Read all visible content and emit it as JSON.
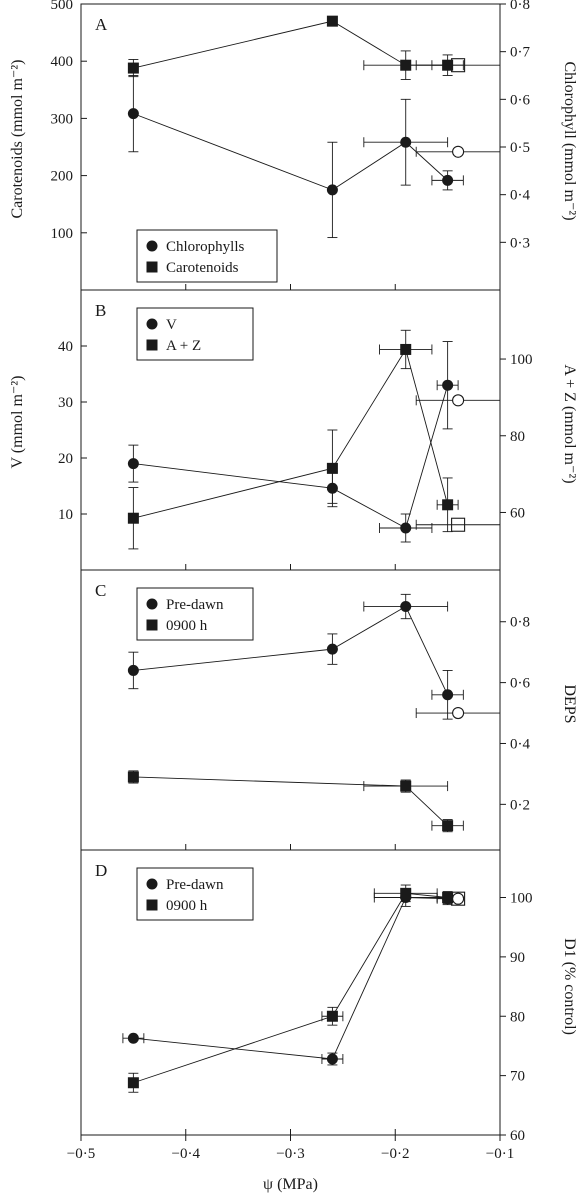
{
  "chart_data": [
    {
      "type": "scatter",
      "panel": "A",
      "xlim": [
        -0.5,
        -0.1
      ],
      "left_axis": {
        "label": "Carotenoids (mmol m⁻²)",
        "lim": [
          0,
          500
        ],
        "ticks": [
          100,
          200,
          300,
          400,
          500
        ],
        "tick_labels": [
          "100",
          "200",
          "300",
          "400",
          "500"
        ]
      },
      "right_axis": {
        "label": "Chlorophyll (mmol m⁻²)",
        "lim": [
          0.2,
          0.8
        ],
        "ticks": [
          0.3,
          0.4,
          0.5,
          0.6,
          0.7,
          0.8
        ],
        "tick_labels": [
          "0·3",
          "0·4",
          "0·5",
          "0·6",
          "0·7",
          "0·8"
        ]
      },
      "legend": {
        "placement": "bottom-left",
        "entries": [
          {
            "label": "Chlorophylls",
            "marker": "circle"
          },
          {
            "label": "Carotenoids",
            "marker": "square"
          }
        ]
      },
      "series": [
        {
          "name": "Chlorophylls",
          "marker": "circle",
          "axis": "right",
          "points": [
            {
              "x": -0.45,
              "y": 0.57,
              "yerr": 0.08
            },
            {
              "x": -0.26,
              "y": 0.41,
              "yerr": 0.1
            },
            {
              "x": -0.19,
              "y": 0.51,
              "yerr": 0.09,
              "xerr": 0.04
            },
            {
              "x": -0.15,
              "y": 0.43,
              "yerr": 0.02,
              "xerr": 0.015
            }
          ]
        },
        {
          "name": "Carotenoids",
          "marker": "square",
          "axis": "left",
          "points": [
            {
              "x": -0.45,
              "y": 388,
              "yerr": 15
            },
            {
              "x": -0.26,
              "y": 470,
              "yerr": 8
            },
            {
              "x": -0.19,
              "y": 393,
              "yerr": 25,
              "xerr": 0.04
            },
            {
              "x": -0.15,
              "y": 393,
              "yerr": 18,
              "xerr": 0.015
            }
          ]
        },
        {
          "marker": "open-circle",
          "axis": "right",
          "points": [
            {
              "x": -0.14,
              "y": 0.49,
              "xerr": 0.04
            }
          ]
        },
        {
          "marker": "open-square",
          "axis": "left",
          "points": [
            {
              "x": -0.14,
              "y": 393,
              "xerr": 0.04
            }
          ]
        }
      ]
    },
    {
      "type": "scatter",
      "panel": "B",
      "xlim": [
        -0.5,
        -0.1
      ],
      "left_axis": {
        "label": "V (mmol m⁻²)",
        "lim": [
          0,
          50
        ],
        "ticks": [
          10,
          20,
          30,
          40
        ],
        "tick_labels": [
          "10",
          "20",
          "30",
          "40"
        ]
      },
      "right_axis": {
        "label": "A + Z (mmol m⁻²)",
        "lim": [
          45,
          118
        ],
        "ticks": [
          60,
          80,
          100
        ],
        "tick_labels": [
          "60",
          "80",
          "100"
        ]
      },
      "legend": {
        "placement": "top-left",
        "entries": [
          {
            "label": "V",
            "marker": "circle"
          },
          {
            "label": "A + Z",
            "marker": "square"
          }
        ]
      },
      "series": [
        {
          "name": "V",
          "marker": "circle",
          "axis": "left",
          "points": [
            {
              "x": -0.45,
              "y": 19,
              "yerr": 3.3
            },
            {
              "x": -0.26,
              "y": 14.6,
              "yerr": 2.7
            },
            {
              "x": -0.19,
              "y": 7.5,
              "yerr": 2.5,
              "xerr": 0.025
            },
            {
              "x": -0.15,
              "y": 33,
              "yerr": 7.8,
              "xerr": 0.01
            }
          ]
        },
        {
          "name": "A + Z",
          "marker": "square",
          "axis": "right",
          "points": [
            {
              "x": -0.45,
              "y": 58.5,
              "yerr": 8
            },
            {
              "x": -0.26,
              "y": 71.5,
              "yerr": 10
            },
            {
              "x": -0.19,
              "y": 102.5,
              "yerr": 5,
              "xerr": 0.025
            },
            {
              "x": -0.15,
              "y": 62,
              "yerr": 7,
              "xerr": 0.01
            }
          ]
        },
        {
          "marker": "open-circle",
          "axis": "left",
          "points": [
            {
              "x": -0.14,
              "y": 30.3,
              "xerr": 0.04
            }
          ]
        },
        {
          "marker": "open-square",
          "axis": "right",
          "points": [
            {
              "x": -0.14,
              "y": 56.8,
              "xerr": 0.04
            }
          ]
        }
      ]
    },
    {
      "type": "scatter",
      "panel": "C",
      "xlim": [
        -0.5,
        -0.1
      ],
      "right_axis": {
        "label": "DEPS",
        "lim": [
          0.05,
          0.97
        ],
        "ticks": [
          0.2,
          0.4,
          0.6,
          0.8
        ],
        "tick_labels": [
          "0·2",
          "0·4",
          "0·6",
          "0·8"
        ]
      },
      "legend": {
        "placement": "top-left",
        "entries": [
          {
            "label": "Pre-dawn",
            "marker": "circle"
          },
          {
            "label": "0900 h",
            "marker": "square"
          }
        ]
      },
      "series": [
        {
          "name": "Pre-dawn",
          "marker": "circle",
          "axis": "right",
          "points": [
            {
              "x": -0.45,
              "y": 0.64,
              "yerr": 0.06
            },
            {
              "x": -0.26,
              "y": 0.71,
              "yerr": 0.05
            },
            {
              "x": -0.19,
              "y": 0.85,
              "yerr": 0.04,
              "xerr": 0.04
            },
            {
              "x": -0.15,
              "y": 0.56,
              "yerr": 0.08,
              "xerr": 0.015
            }
          ]
        },
        {
          "name": "0900 h",
          "marker": "square",
          "axis": "right",
          "points": [
            {
              "x": -0.45,
              "y": 0.29,
              "yerr": 0.02
            },
            {
              "x": -0.19,
              "y": 0.26,
              "yerr": 0.02,
              "xerr": 0.04
            },
            {
              "x": -0.15,
              "y": 0.13,
              "yerr": 0.02,
              "xerr": 0.015
            }
          ]
        },
        {
          "marker": "open-circle",
          "axis": "right",
          "points": [
            {
              "x": -0.14,
              "y": 0.5,
              "xerr": 0.04
            }
          ]
        }
      ]
    },
    {
      "type": "scatter",
      "panel": "D",
      "xlim": [
        -0.5,
        -0.1
      ],
      "xlabel": "ψ (MPa)",
      "xticks": [
        -0.5,
        -0.4,
        -0.3,
        -0.2,
        -0.1
      ],
      "xtick_labels": [
        "−0·5",
        "−0·4",
        "−0·3",
        "−0·2",
        "−0·1"
      ],
      "right_axis": {
        "label": "D1 (% control)",
        "lim": [
          60,
          108
        ],
        "ticks": [
          60,
          70,
          80,
          90,
          100
        ],
        "tick_labels": [
          "60",
          "70",
          "80",
          "90",
          "100"
        ]
      },
      "legend": {
        "placement": "top-left",
        "entries": [
          {
            "label": "Pre-dawn",
            "marker": "circle"
          },
          {
            "label": "0900 h",
            "marker": "square"
          }
        ]
      },
      "series": [
        {
          "name": "Pre-dawn",
          "marker": "circle",
          "axis": "right",
          "points": [
            {
              "x": -0.45,
              "y": 76.3,
              "xerr": 0.01
            },
            {
              "x": -0.26,
              "y": 72.8,
              "yerr": 1,
              "xerr": 0.01
            },
            {
              "x": -0.19,
              "y": 100,
              "yerr": 1.5,
              "xerr": 0.03
            },
            {
              "x": -0.15,
              "y": 99.8,
              "yerr": 1,
              "xerr": 0.01
            }
          ]
        },
        {
          "name": "0900 h",
          "marker": "square",
          "axis": "right",
          "points": [
            {
              "x": -0.45,
              "y": 68.8,
              "yerr": 1.6
            },
            {
              "x": -0.26,
              "y": 80,
              "yerr": 1.5,
              "xerr": 0.01
            },
            {
              "x": -0.19,
              "y": 100.7,
              "yerr": 1.4,
              "xerr": 0.03
            },
            {
              "x": -0.15,
              "y": 100,
              "yerr": 1,
              "xerr": 0.01
            }
          ]
        },
        {
          "marker": "open-circle",
          "axis": "right",
          "points": [
            {
              "x": -0.14,
              "y": 99.8
            }
          ]
        },
        {
          "marker": "open-square",
          "axis": "right",
          "points": [
            {
              "x": -0.14,
              "y": 99.8
            }
          ]
        }
      ]
    }
  ]
}
